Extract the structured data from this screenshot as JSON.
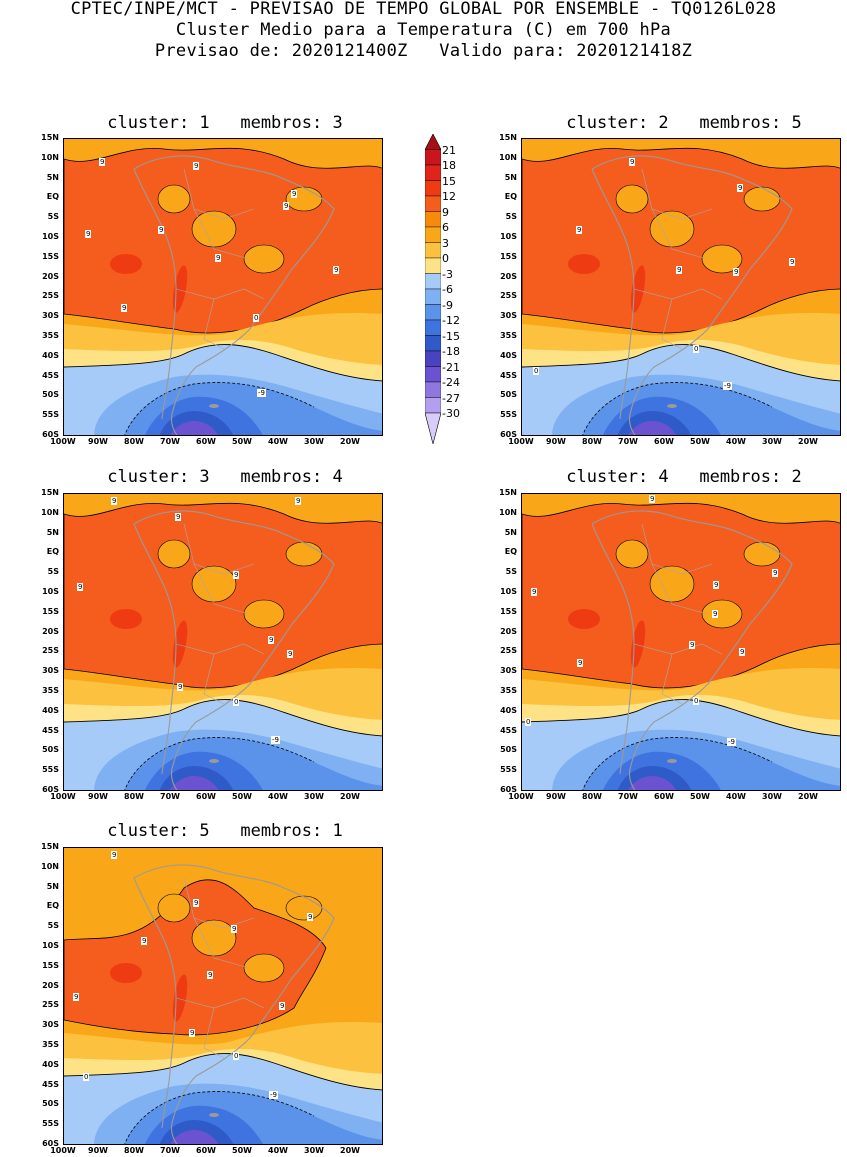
{
  "header": {
    "line1": "CPTEC/INPE/MCT - PREVISAO DE TEMPO GLOBAL POR ENSEMBLE - TQ0126L028",
    "line2": "Cluster Medio para a Temperatura (C) em 700 hPa",
    "line3": "Previsao de: 2020121400Z   Valido para: 2020121418Z"
  },
  "y_ticks": [
    "15N",
    "10N",
    "5N",
    "EQ",
    "5S",
    "10S",
    "15S",
    "20S",
    "25S",
    "30S",
    "35S",
    "40S",
    "45S",
    "50S",
    "55S",
    "60S"
  ],
  "x_ticks": [
    "100W",
    "90W",
    "80W",
    "70W",
    "60W",
    "50W",
    "40W",
    "30W",
    "20W"
  ],
  "colorbar": {
    "labels": [
      "21",
      "18",
      "15",
      "12",
      "9",
      "6",
      "3",
      "0",
      "-3",
      "-6",
      "-9",
      "-12",
      "-15",
      "-18",
      "-21",
      "-24",
      "-27",
      "-30"
    ],
    "colors": [
      "#a50f15",
      "#c8161c",
      "#e0231b",
      "#ef3b12",
      "#f55d1e",
      "#f88a0a",
      "#f9a619",
      "#fbc13f",
      "#fde386",
      "#a6cbf8",
      "#7fb0f2",
      "#5b93ea",
      "#3f74e0",
      "#2f5bc9",
      "#4a43c1",
      "#6b52d0",
      "#8e78e0",
      "#b39ff0",
      "#d8cdf8"
    ]
  },
  "panels": [
    {
      "title": "cluster: 1   membros: 3",
      "labels": [
        "9",
        "9",
        "9",
        "9",
        "9",
        "9",
        "9",
        "9",
        "9",
        "0",
        "-9"
      ]
    },
    {
      "title": "cluster: 2   membros: 5",
      "labels": [
        "9",
        "9",
        "9",
        "9",
        "9",
        "9",
        "0",
        "0",
        "-9"
      ]
    },
    {
      "title": "cluster: 3   membros: 4",
      "labels": [
        "9",
        "9",
        "9",
        "9",
        "9",
        "9",
        "9",
        "9",
        "0",
        "-9"
      ]
    },
    {
      "title": "cluster: 4   membros: 2",
      "labels": [
        "9",
        "9",
        "9",
        "9",
        "9",
        "9",
        "9",
        "9",
        "0",
        "0",
        "-9"
      ]
    },
    {
      "title": "cluster: 5   membros: 1",
      "labels": [
        "9",
        "9",
        "9",
        "9",
        "9",
        "9",
        "9",
        "9",
        "9",
        "0",
        "0",
        "-9"
      ]
    }
  ]
}
